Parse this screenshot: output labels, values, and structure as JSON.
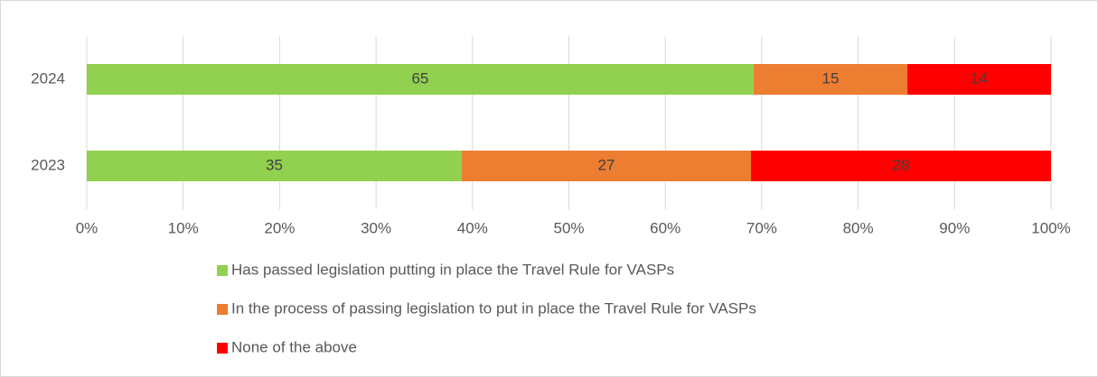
{
  "chart_data": {
    "type": "bar",
    "orientation": "horizontal",
    "stacked": "percent",
    "categories": [
      "2024",
      "2023"
    ],
    "series": [
      {
        "name": "Has passed legislation putting in place the Travel Rule for VASPs",
        "color": "#92d050",
        "values": [
          65,
          35
        ]
      },
      {
        "name": "In the process of passing legislation to put in place the Travel Rule for VASPs",
        "color": "#ed7d31",
        "values": [
          15,
          27
        ]
      },
      {
        "name": "None of the above",
        "color": "#ff0000",
        "values": [
          14,
          28
        ]
      }
    ],
    "xlim": [
      0,
      100
    ],
    "xticks": [
      {
        "value": 0,
        "label": "0%"
      },
      {
        "value": 10,
        "label": "10%"
      },
      {
        "value": 20,
        "label": "20%"
      },
      {
        "value": 30,
        "label": "30%"
      },
      {
        "value": 40,
        "label": "40%"
      },
      {
        "value": 50,
        "label": "50%"
      },
      {
        "value": 60,
        "label": "60%"
      },
      {
        "value": 70,
        "label": "70%"
      },
      {
        "value": 80,
        "label": "80%"
      },
      {
        "value": 90,
        "label": "90%"
      },
      {
        "value": 100,
        "label": "100%"
      }
    ],
    "grid": true,
    "legend": "bottom"
  }
}
